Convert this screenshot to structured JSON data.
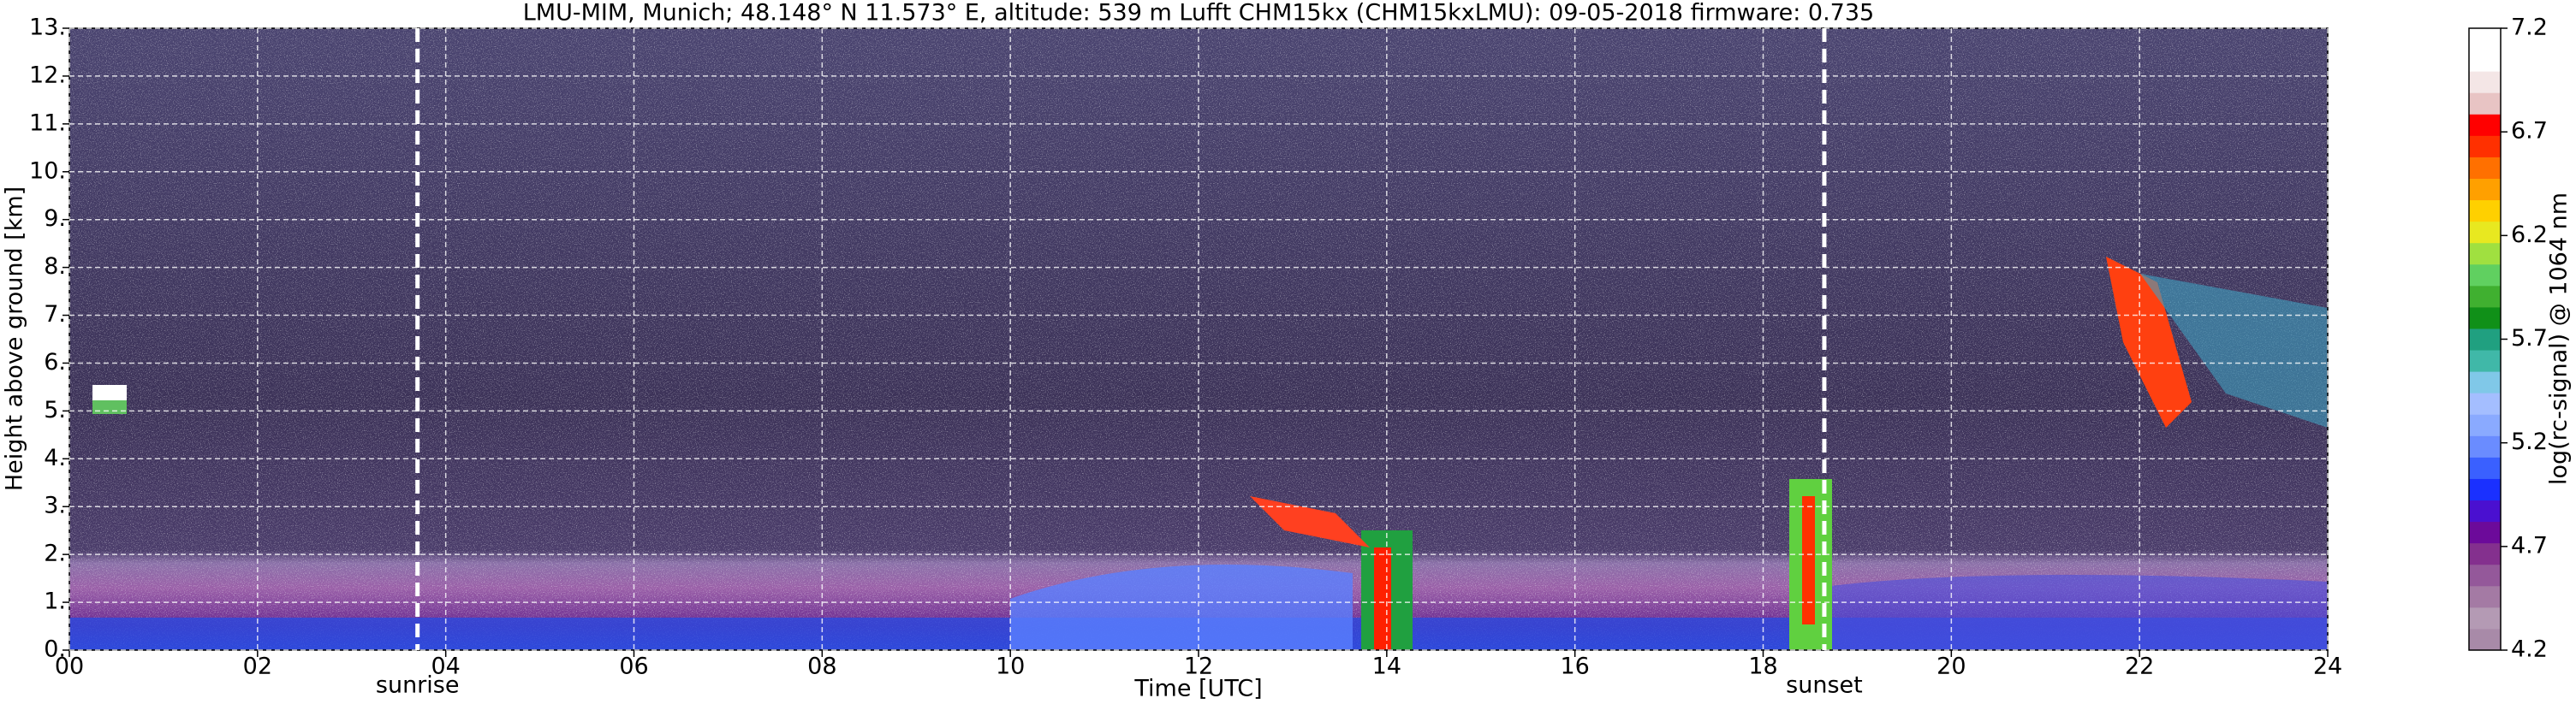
{
  "chart_data": {
    "type": "heatmap",
    "title": "LMU-MIM, Munich; 48.148° N 11.573° E, altitude: 539 m    Lufft CHM15kx (CHM15kxLMU): 09-05-2018    firmware: 0.735",
    "x_label": "Time [UTC]",
    "y_label": "Height above ground [km]",
    "xlim": [
      0,
      24
    ],
    "xticks": [
      {
        "value": 0,
        "label": "00"
      },
      {
        "value": 2,
        "label": "02"
      },
      {
        "value": 4,
        "label": "04"
      },
      {
        "value": 6,
        "label": "06"
      },
      {
        "value": 8,
        "label": "08"
      },
      10,
      12,
      14,
      16,
      18,
      20,
      22,
      24
    ],
    "ylim": [
      0,
      13
    ],
    "yticks": [
      {
        "value": 0,
        "label": "0."
      },
      {
        "value": 1,
        "label": "1."
      },
      {
        "value": 2,
        "label": "2."
      },
      {
        "value": 3,
        "label": "3."
      },
      {
        "value": 4,
        "label": "4."
      },
      {
        "value": 5,
        "label": "5."
      },
      {
        "value": 6,
        "label": "6."
      },
      {
        "value": 7,
        "label": "7."
      },
      {
        "value": 8,
        "label": "8."
      },
      {
        "value": 9,
        "label": "9."
      },
      {
        "value": 10,
        "label": "10."
      },
      {
        "value": 11,
        "label": "11."
      },
      {
        "value": 12,
        "label": "12."
      },
      {
        "value": 13,
        "label": "13."
      }
    ],
    "grid": true,
    "annotations": [
      {
        "label": "sunrise",
        "x": 3.7
      },
      {
        "label": "sunset",
        "x": 18.65
      }
    ],
    "colorbar_label": "log(rc-signal) @ 1064 nm",
    "clim": [
      4.2,
      7.2
    ],
    "cticks": [
      4.2,
      4.7,
      5.2,
      5.7,
      6.2,
      6.7,
      7.2
    ],
    "colormap": [
      "#a88aa8",
      "#b49ab4",
      "#a47aa4",
      "#94589a",
      "#84308e",
      "#6c0a9a",
      "#4a10d0",
      "#1a30ff",
      "#3a60ff",
      "#6a8cff",
      "#8aaaff",
      "#a4beff",
      "#80c8e8",
      "#40b8a8",
      "#20a080",
      "#109018",
      "#40b030",
      "#60d060",
      "#a0e040",
      "#e8e820",
      "#ffd000",
      "#ffa000",
      "#ff7000",
      "#ff3000",
      "#ff0000",
      "#e8c4c4",
      "#f4e6e6",
      "#ffffff",
      "#ffffff"
    ]
  }
}
